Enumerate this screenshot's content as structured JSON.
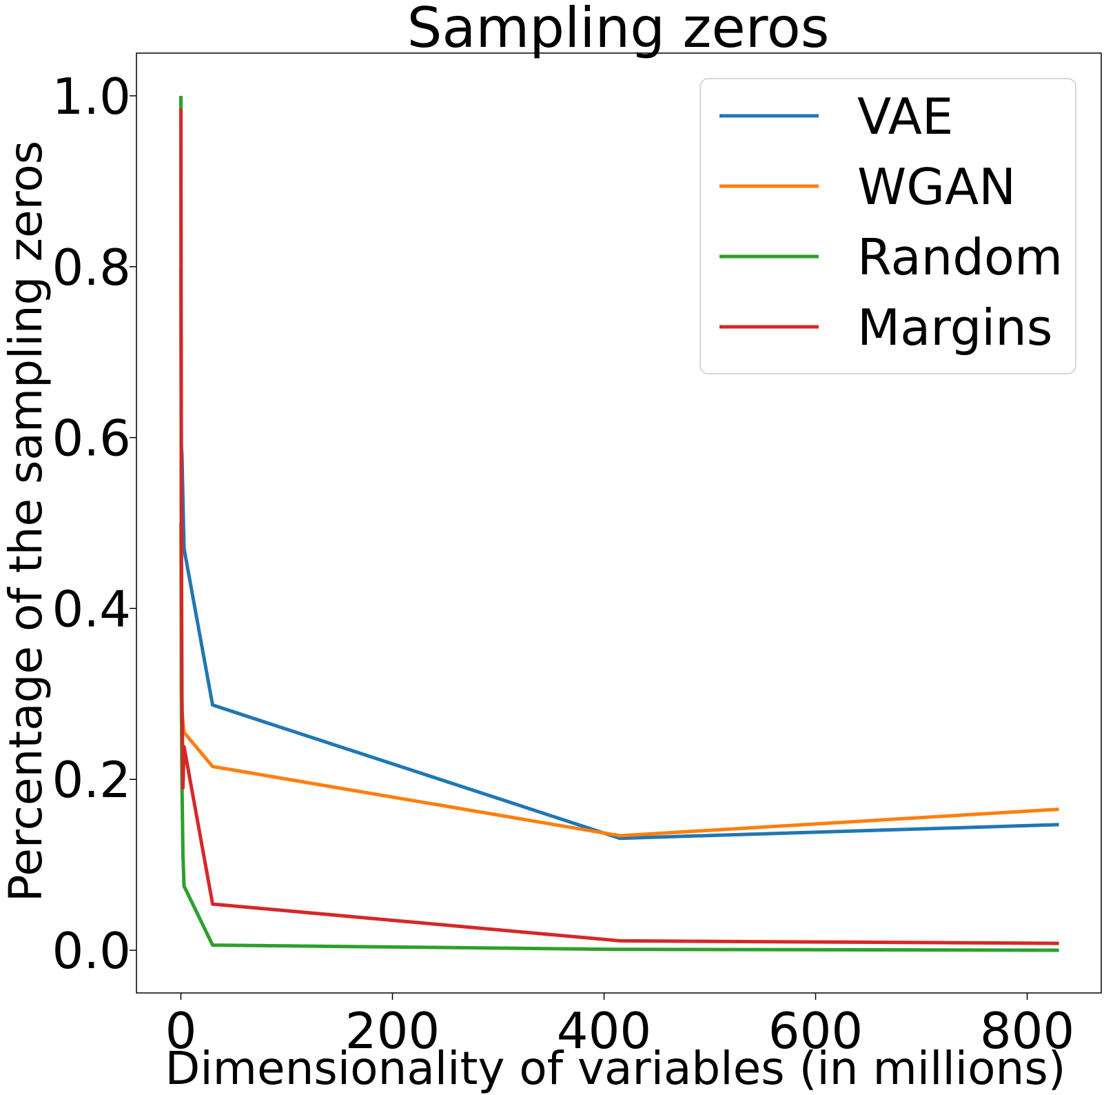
{
  "chart_data": {
    "type": "line",
    "title": "Sampling zeros",
    "xlabel": "Dimensionality of variables (in millions)",
    "ylabel": "Percentage of the sampling zeros",
    "xlim": [
      -42,
      870
    ],
    "ylim": [
      -0.05,
      1.05
    ],
    "xticks": [
      0,
      200,
      400,
      600,
      800
    ],
    "yticks": [
      0.0,
      0.2,
      0.4,
      0.6,
      0.8,
      1.0
    ],
    "xtick_labels": [
      "0",
      "200",
      "400",
      "600",
      "800"
    ],
    "ytick_labels": [
      "0.0",
      "0.2",
      "0.4",
      "0.6",
      "0.8",
      "1.0"
    ],
    "grid": false,
    "legend_position": "top-right",
    "series": [
      {
        "name": "VAE",
        "color": "#1f77b4",
        "points": [
          [
            0,
            0.8
          ],
          [
            0.5,
            0.59
          ],
          [
            1,
            0.58
          ],
          [
            3,
            0.47
          ],
          [
            30,
            0.287
          ],
          [
            415,
            0.131
          ],
          [
            830,
            0.147
          ]
        ]
      },
      {
        "name": "WGAN",
        "color": "#ff7f0e",
        "points": [
          [
            0,
            0.5
          ],
          [
            0.5,
            0.3
          ],
          [
            1,
            0.28
          ],
          [
            3,
            0.255
          ],
          [
            30,
            0.215
          ],
          [
            415,
            0.134
          ],
          [
            830,
            0.165
          ]
        ]
      },
      {
        "name": "Random",
        "color": "#2ca02c",
        "points": [
          [
            0,
            1.0
          ],
          [
            0.5,
            0.3
          ],
          [
            1,
            0.2
          ],
          [
            2,
            0.11
          ],
          [
            3,
            0.075
          ],
          [
            30,
            0.006
          ],
          [
            415,
            0.001
          ],
          [
            830,
            0.0
          ]
        ]
      },
      {
        "name": "Margins",
        "color": "#d62728",
        "points": [
          [
            0,
            0.985
          ],
          [
            0.5,
            0.5
          ],
          [
            1,
            0.3
          ],
          [
            2,
            0.19
          ],
          [
            3,
            0.238
          ],
          [
            30,
            0.054
          ],
          [
            415,
            0.011
          ],
          [
            830,
            0.008
          ]
        ]
      }
    ]
  }
}
